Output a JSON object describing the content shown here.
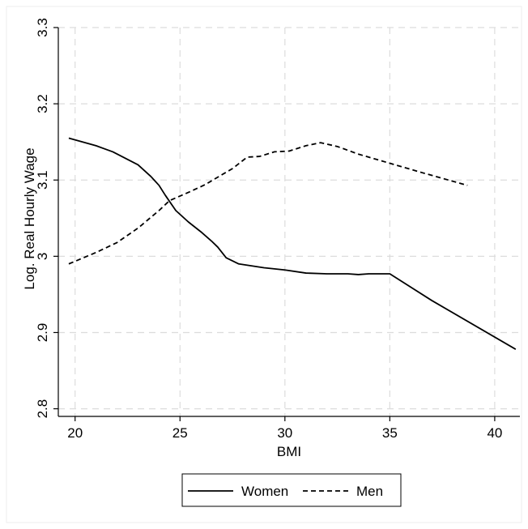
{
  "chart_data": {
    "type": "line",
    "xlabel": "BMI",
    "ylabel": "Log. Real Hourly Wage",
    "xlim": [
      19.2,
      41.2
    ],
    "ylim": [
      2.79,
      3.3
    ],
    "xticks": [
      20,
      25,
      30,
      35,
      40
    ],
    "yticks": [
      2.8,
      2.9,
      3.0,
      3.1,
      3.2,
      3.3
    ],
    "xtick_labels": [
      "20",
      "25",
      "30",
      "35",
      "40"
    ],
    "ytick_labels": [
      "2.8",
      "2.9",
      "3",
      "3.1",
      "3.2",
      "3.3"
    ],
    "grid": true,
    "legend_position": "bottom",
    "series": [
      {
        "name": "Women",
        "style": "solid",
        "color": "#000000",
        "points": [
          [
            19.7,
            3.155
          ],
          [
            21.0,
            3.145
          ],
          [
            21.8,
            3.137
          ],
          [
            23.0,
            3.12
          ],
          [
            23.6,
            3.105
          ],
          [
            24.0,
            3.093
          ],
          [
            24.3,
            3.08
          ],
          [
            24.8,
            3.06
          ],
          [
            25.4,
            3.045
          ],
          [
            26.0,
            3.032
          ],
          [
            26.5,
            3.02
          ],
          [
            26.8,
            3.012
          ],
          [
            27.2,
            2.998
          ],
          [
            27.8,
            2.99
          ],
          [
            29.0,
            2.985
          ],
          [
            30.0,
            2.982
          ],
          [
            31.0,
            2.978
          ],
          [
            32.0,
            2.977
          ],
          [
            33.0,
            2.977
          ],
          [
            33.5,
            2.976
          ],
          [
            34.0,
            2.977
          ],
          [
            35.0,
            2.977
          ],
          [
            37.0,
            2.942
          ],
          [
            41.0,
            2.878
          ]
        ]
      },
      {
        "name": "Men",
        "style": "dashed",
        "color": "#000000",
        "points": [
          [
            19.7,
            2.99
          ],
          [
            21.0,
            3.005
          ],
          [
            22.0,
            3.018
          ],
          [
            23.0,
            3.037
          ],
          [
            24.0,
            3.06
          ],
          [
            24.5,
            3.073
          ],
          [
            25.5,
            3.085
          ],
          [
            26.2,
            3.094
          ],
          [
            27.0,
            3.107
          ],
          [
            27.5,
            3.115
          ],
          [
            28.2,
            3.13
          ],
          [
            28.8,
            3.131
          ],
          [
            29.5,
            3.137
          ],
          [
            30.2,
            3.138
          ],
          [
            31.0,
            3.145
          ],
          [
            31.7,
            3.149
          ],
          [
            32.5,
            3.144
          ],
          [
            33.5,
            3.134
          ],
          [
            35.0,
            3.122
          ],
          [
            36.5,
            3.11
          ],
          [
            38.7,
            3.093
          ]
        ]
      }
    ]
  }
}
